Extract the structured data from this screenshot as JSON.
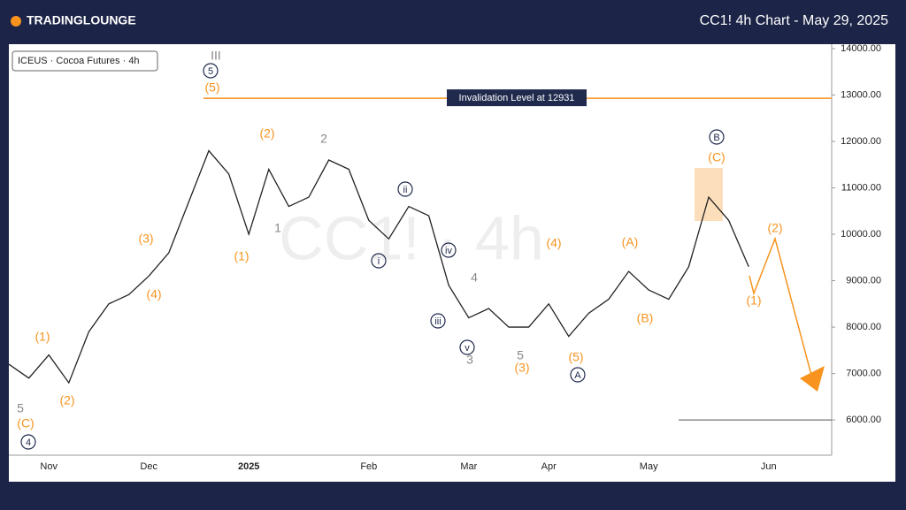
{
  "header": {
    "brand": "TRADINGLOUNGE",
    "title": "CC1! 4h Chart - May 29, 2025"
  },
  "chart_data": {
    "type": "line",
    "legend_text": "ICEUS · Cocoa Futures · 4h",
    "watermark": "CC1! · 4h",
    "color": "#222222",
    "categories": [
      null,
      null,
      "Nov",
      null,
      null,
      null,
      null,
      "Dec",
      null,
      null,
      null,
      null,
      "2025",
      null,
      null,
      null,
      null,
      null,
      "Feb",
      null,
      null,
      null,
      null,
      "Mar",
      null,
      null,
      null,
      "Apr",
      null,
      null,
      null,
      null,
      "May",
      null,
      null,
      null,
      null,
      null,
      "Jun",
      null,
      null
    ],
    "values": [
      7200,
      6900,
      7400,
      6800,
      7900,
      8500,
      8700,
      9100,
      9600,
      10700,
      11800,
      11300,
      10000,
      11400,
      10600,
      10800,
      11600,
      11400,
      10300,
      9900,
      10600,
      10400,
      8900,
      8200,
      8400,
      8000,
      8000,
      8500,
      7800,
      8300,
      8600,
      9200,
      8800,
      8600,
      9300,
      10800,
      10300,
      9300,
      null,
      null,
      null
    ],
    "ylim": [
      5240,
      14095
    ],
    "yticks": [
      {
        "value": 6000,
        "label": "6000.00"
      },
      {
        "value": 7000,
        "label": "7000.00"
      },
      {
        "value": 8000,
        "label": "8000.00"
      },
      {
        "value": 9000,
        "label": "9000.00"
      },
      {
        "value": 10000,
        "label": "10000.00"
      },
      {
        "value": 11000,
        "label": "11000.00"
      },
      {
        "value": 12000,
        "label": "12000.00"
      },
      {
        "value": 13000,
        "label": "13000.00"
      },
      {
        "value": 14000,
        "label": "14000.00"
      }
    ],
    "invalidation": {
      "value": 12931,
      "label": "Invalidation Level at 12931",
      "color": "#f7931e"
    },
    "target_line": {
      "value": 6000,
      "color": "#555555"
    },
    "annotations": [
      {
        "text": "III",
        "color": "#888888"
      },
      {
        "text": "5",
        "color": "#1f2a4d",
        "style": "circle"
      },
      {
        "text": "(5)",
        "color": "#f7931e"
      },
      {
        "text": "(2)",
        "color": "#f7931e"
      },
      {
        "text": "2",
        "color": "#888888"
      },
      {
        "text": "1",
        "color": "#888888"
      },
      {
        "text": "(1)",
        "color": "#f7931e"
      },
      {
        "text": "(3)",
        "color": "#f7931e"
      },
      {
        "text": "(4)",
        "color": "#f7931e"
      },
      {
        "text": "(1)",
        "color": "#f7931e"
      },
      {
        "text": "(2)",
        "color": "#f7931e"
      },
      {
        "text": "5",
        "color": "#888888"
      },
      {
        "text": "(C)",
        "color": "#f7931e"
      },
      {
        "text": "4",
        "color": "#1f2a4d",
        "style": "circle"
      },
      {
        "text": "ii",
        "color": "#1f2a4d",
        "style": "circle"
      },
      {
        "text": "i",
        "color": "#1f2a4d",
        "style": "circle"
      },
      {
        "text": "iv",
        "color": "#1f2a4d",
        "style": "circle"
      },
      {
        "text": "iii",
        "color": "#1f2a4d",
        "style": "circle"
      },
      {
        "text": "v",
        "color": "#1f2a4d",
        "style": "circle"
      },
      {
        "text": "4",
        "color": "#888888"
      },
      {
        "text": "3",
        "color": "#888888"
      },
      {
        "text": "5",
        "color": "#888888"
      },
      {
        "text": "(3)",
        "color": "#f7931e"
      },
      {
        "text": "(4)",
        "color": "#f7931e"
      },
      {
        "text": "(5)",
        "color": "#f7931e"
      },
      {
        "text": "A",
        "color": "#1f2a4d",
        "style": "circle"
      },
      {
        "text": "(A)",
        "color": "#f7931e"
      },
      {
        "text": "(B)",
        "color": "#f7931e"
      },
      {
        "text": "B",
        "color": "#1f2a4d",
        "style": "circle"
      },
      {
        "text": "(C)",
        "color": "#f7931e"
      },
      {
        "text": "(2)",
        "color": "#f7931e"
      },
      {
        "text": "(1)",
        "color": "#f7931e"
      }
    ]
  }
}
